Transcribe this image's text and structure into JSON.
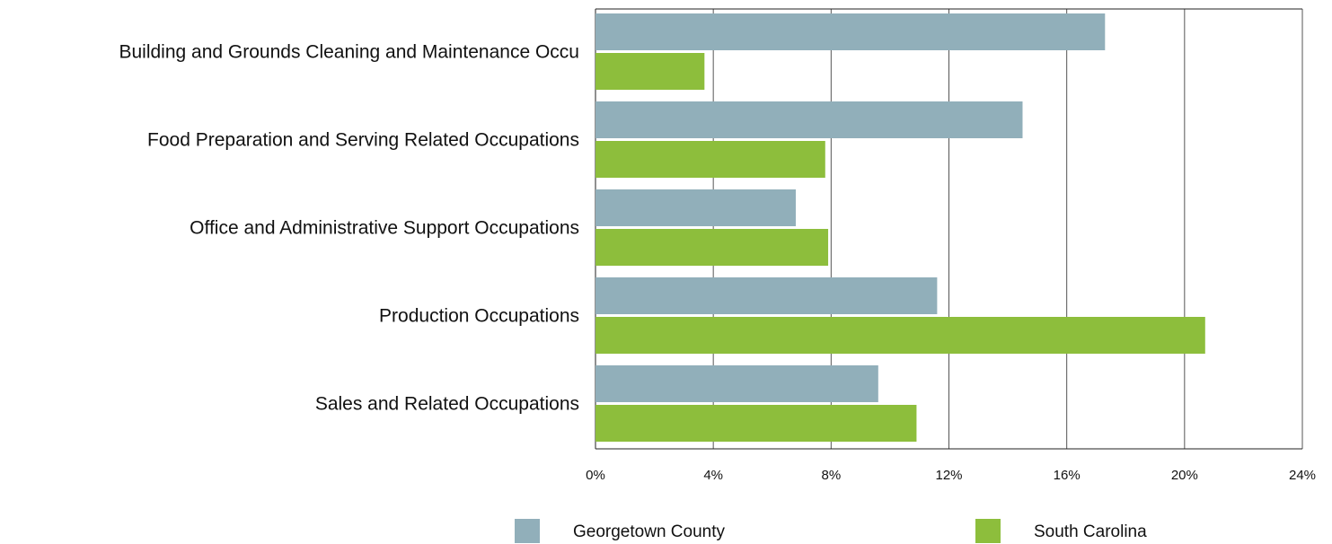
{
  "chart_data": {
    "type": "bar",
    "orientation": "horizontal",
    "categories": [
      "Building and Grounds Cleaning and Maintenance Occu",
      "Food Preparation and Serving Related Occupations",
      "Office and Administrative Support Occupations",
      "Production Occupations",
      "Sales and Related Occupations"
    ],
    "series": [
      {
        "name": "Georgetown County",
        "color": "#91afba",
        "values": [
          17.3,
          14.5,
          6.8,
          11.6,
          9.6
        ]
      },
      {
        "name": "South Carolina",
        "color": "#8dbe3c",
        "values": [
          3.7,
          7.8,
          7.9,
          20.7,
          10.9
        ]
      }
    ],
    "xlim": [
      0,
      24
    ],
    "xticks": [
      {
        "value": 0,
        "label": "0%"
      },
      {
        "value": 4,
        "label": "4%"
      },
      {
        "value": 8,
        "label": "8%"
      },
      {
        "value": 12,
        "label": "12%"
      },
      {
        "value": 16,
        "label": "16%"
      },
      {
        "value": 20,
        "label": "20%"
      },
      {
        "value": 24,
        "label": "24%"
      }
    ],
    "grid": true,
    "legend": "bottom"
  }
}
